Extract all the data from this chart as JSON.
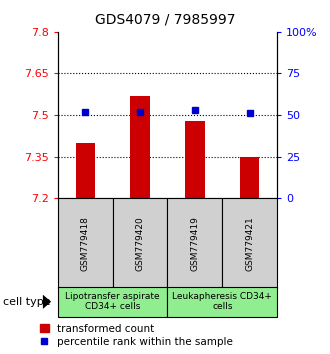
{
  "title": "GDS4079 / 7985997",
  "samples": [
    "GSM779418",
    "GSM779420",
    "GSM779419",
    "GSM779421"
  ],
  "bar_values": [
    7.4,
    7.57,
    7.48,
    7.35
  ],
  "percentile_values": [
    52,
    52,
    53,
    51
  ],
  "ymin": 7.2,
  "ymax": 7.8,
  "yticks": [
    7.2,
    7.35,
    7.5,
    7.65,
    7.8
  ],
  "y2min": 0,
  "y2max": 100,
  "y2ticks": [
    0,
    25,
    50,
    75,
    100
  ],
  "y2ticklabels": [
    "0",
    "25",
    "50",
    "75",
    "100%"
  ],
  "bar_color": "#cc0000",
  "percentile_color": "#0000cc",
  "dotted_line_y": [
    7.35,
    7.5,
    7.65
  ],
  "cell_type_label": "cell type",
  "group1_label": "Lipotransfer aspirate\nCD34+ cells",
  "group2_label": "Leukapheresis CD34+\ncells",
  "legend_bar_label": "transformed count",
  "legend_percentile_label": "percentile rank within the sample",
  "bar_width": 0.35,
  "sample_box_bg": "#d0d0d0",
  "group_bg": "#90ee90",
  "title_fontsize": 10,
  "tick_fontsize": 8,
  "legend_fontsize": 7.5,
  "sample_fontsize": 6.5,
  "group_fontsize": 6.5
}
